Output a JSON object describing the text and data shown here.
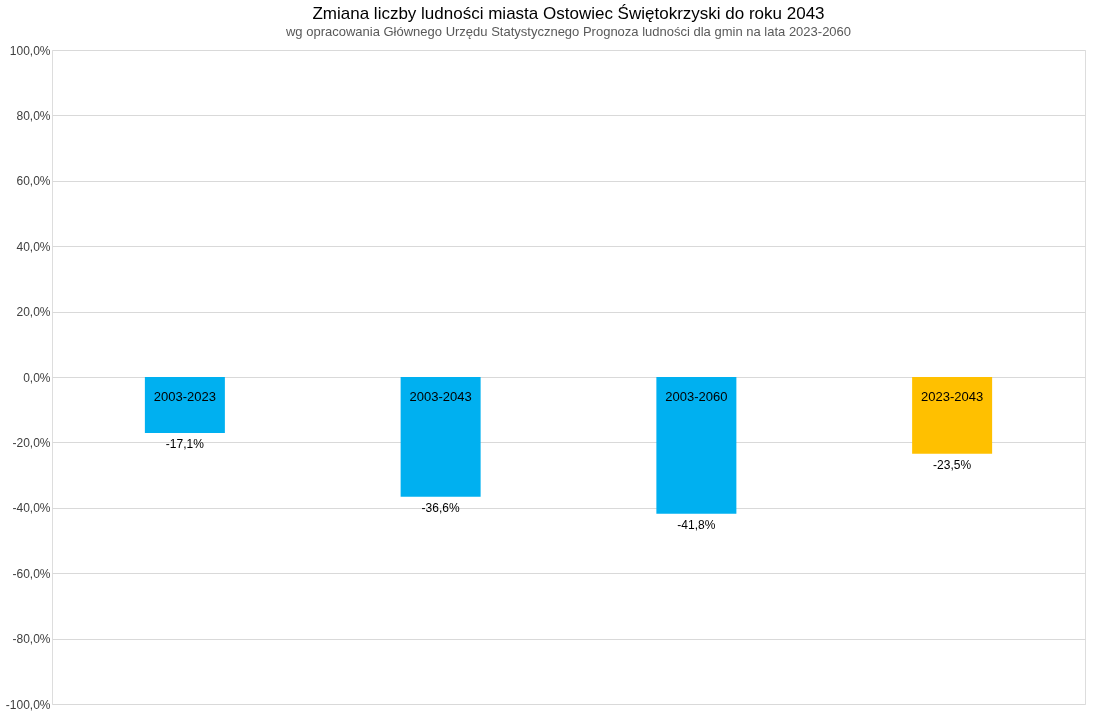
{
  "chart_data": {
    "type": "bar",
    "title": "Zmiana liczby ludności miasta Ostowiec Świętokrzyski do roku 2043",
    "subtitle": "wg opracowania Głównego Urzędu Statystycznego Prognoza ludności dla gmin na lata 2023-2060",
    "categories": [
      "2003-2023",
      "2003-2043",
      "2003-2060",
      "2023-2043"
    ],
    "values": [
      -17.1,
      -36.6,
      -41.8,
      -23.5
    ],
    "colors": [
      "#00b0f0",
      "#00b0f0",
      "#00b0f0",
      "#ffc000"
    ],
    "value_labels": [
      "-17,1%",
      "-36,6%",
      "-41,8%",
      "-23,5%"
    ],
    "ylim": [
      -100,
      100
    ],
    "yticks": [
      {
        "value": -100,
        "label": "-100,0%"
      },
      {
        "value": -80,
        "label": "-80,0%"
      },
      {
        "value": -60,
        "label": "-60,0%"
      },
      {
        "value": -40,
        "label": "-40,0%"
      },
      {
        "value": -20,
        "label": "-20,0%"
      },
      {
        "value": 0,
        "label": "0,0%"
      },
      {
        "value": 20,
        "label": "20,0%"
      },
      {
        "value": 40,
        "label": "40,0%"
      },
      {
        "value": 60,
        "label": "60,0%"
      },
      {
        "value": 80,
        "label": "80,0%"
      },
      {
        "value": 100,
        "label": "100,0%"
      }
    ],
    "grid": "y",
    "tick_labels": "y"
  }
}
